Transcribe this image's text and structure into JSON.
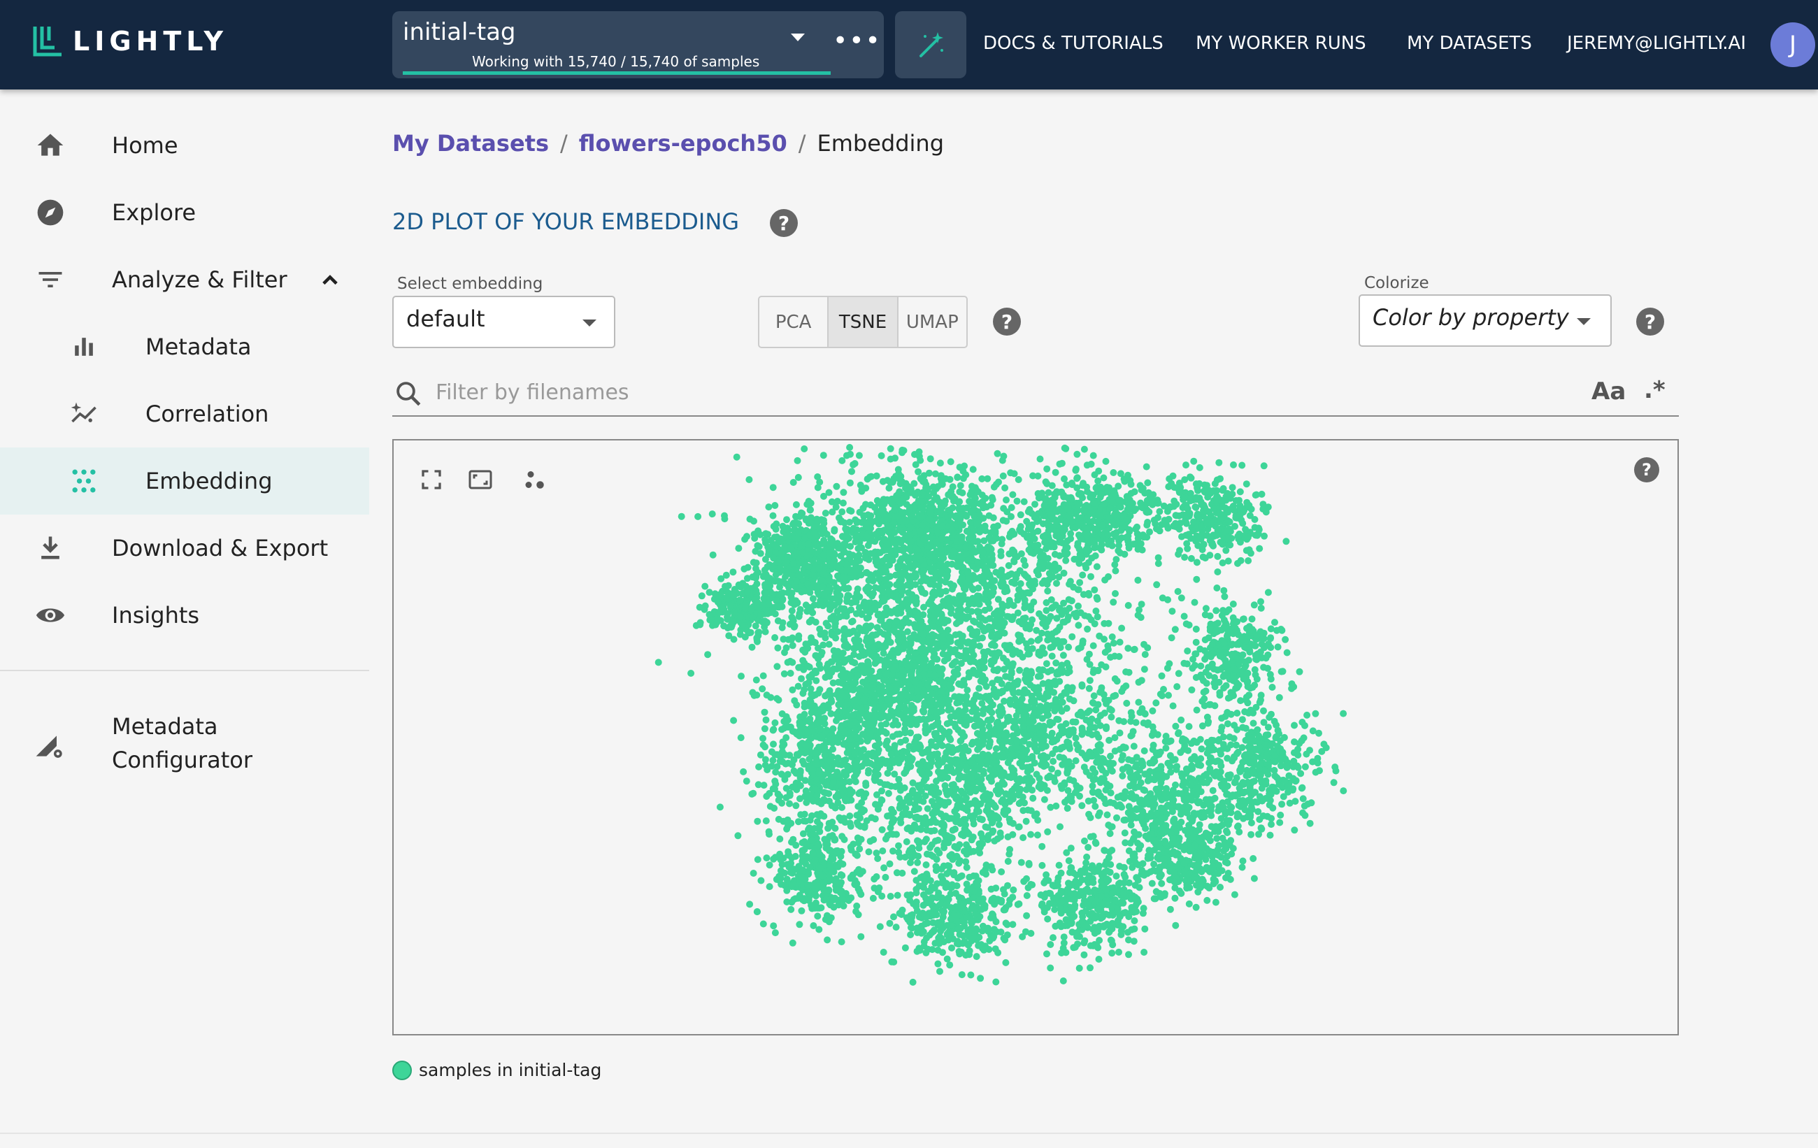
{
  "app": {
    "logo_text": "LIGHTLY",
    "accent_color": "#3dd598",
    "topbar_color": "#142740"
  },
  "tag_selector": {
    "name": "initial-tag",
    "subtitle": "Working with 15,740 / 15,740 of samples",
    "progress": 1.0,
    "more_label": "•••"
  },
  "nav": {
    "docs": "DOCS & TUTORIALS",
    "worker_runs": "MY WORKER RUNS",
    "datasets": "MY DATASETS",
    "user": "JEREMY@LIGHTLY.AI",
    "avatar_initial": "J"
  },
  "sidebar": {
    "items": [
      {
        "label": "Home",
        "icon": "home-icon"
      },
      {
        "label": "Explore",
        "icon": "compass-icon"
      },
      {
        "label": "Analyze & Filter",
        "icon": "filter-icon",
        "expanded": true
      },
      {
        "label": "Metadata",
        "icon": "bar-chart-icon"
      },
      {
        "label": "Correlation",
        "icon": "correlation-icon"
      },
      {
        "label": "Embedding",
        "icon": "embedding-icon",
        "active": true
      },
      {
        "label": "Download & Export",
        "icon": "download-icon"
      },
      {
        "label": "Insights",
        "icon": "eye-icon"
      }
    ],
    "configurator": {
      "line1": "Metadata",
      "line2": "Configurator",
      "icon": "configurator-icon"
    }
  },
  "breadcrumb": {
    "items": [
      "My Datasets",
      "flowers-epoch50",
      "Embedding"
    ],
    "separator": "/"
  },
  "section": {
    "title": "2D PLOT OF YOUR EMBEDDING",
    "help": "?"
  },
  "controls": {
    "embedding_label": "Select embedding",
    "embedding_value": "default",
    "methods": [
      "PCA",
      "TSNE",
      "UMAP"
    ],
    "selected_method": "TSNE",
    "colorize_label": "Colorize",
    "colorize_value": "Color by property"
  },
  "filter": {
    "placeholder": "Filter by filenames",
    "value": "",
    "case_label": "Aa",
    "regex_label": ".*"
  },
  "plot": {
    "help": "?",
    "point_color": "#3dd598",
    "tools": [
      "fullscreen-icon",
      "fit-view-icon",
      "point-size-icon"
    ]
  },
  "legend": {
    "label": "samples in initial-tag"
  }
}
